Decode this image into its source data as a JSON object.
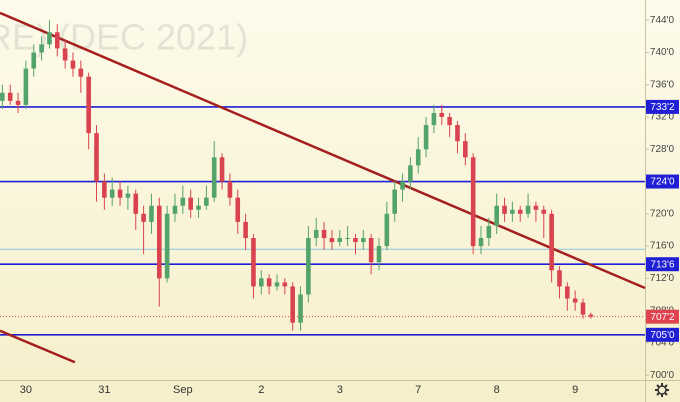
{
  "chart_data": {
    "type": "candlestick",
    "watermark": "RE) (DEC 2021)",
    "up_color": "#53a36a",
    "down_color": "#d9434f",
    "categories": [
      null,
      null,
      null,
      "30",
      null,
      null,
      null,
      null,
      null,
      null,
      null,
      null,
      null,
      "31",
      null,
      null,
      null,
      null,
      null,
      null,
      null,
      null,
      null,
      "Sep",
      null,
      null,
      null,
      null,
      null,
      null,
      null,
      null,
      null,
      "2",
      null,
      null,
      null,
      null,
      null,
      null,
      null,
      null,
      null,
      "3",
      null,
      null,
      null,
      null,
      null,
      null,
      null,
      null,
      null,
      "7",
      null,
      null,
      null,
      null,
      null,
      null,
      null,
      null,
      null,
      "8",
      null,
      null,
      null,
      null,
      null,
      null,
      null,
      null,
      null,
      "9",
      null,
      null
    ],
    "candles": [
      [
        734,
        736,
        733,
        735
      ],
      [
        735,
        736,
        733.5,
        734
      ],
      [
        734,
        735,
        732.5,
        733.5
      ],
      [
        733.5,
        739,
        733,
        738
      ],
      [
        738,
        741,
        737,
        740
      ],
      [
        740,
        742,
        739,
        741
      ],
      [
        741,
        744,
        740.5,
        742.5
      ],
      [
        742.5,
        743.5,
        739.5,
        740.5
      ],
      [
        740.5,
        741.5,
        738,
        739
      ],
      [
        739,
        740,
        737,
        738
      ],
      [
        738,
        739,
        735,
        737
      ],
      [
        737,
        737.5,
        728,
        730
      ],
      [
        730,
        731,
        721.5,
        724
      ],
      [
        724,
        725,
        720.5,
        722
      ],
      [
        722,
        724.5,
        721,
        723
      ],
      [
        723,
        724,
        721,
        722
      ],
      [
        722,
        723.5,
        720.5,
        722.5
      ],
      [
        722.5,
        723,
        718,
        720
      ],
      [
        720,
        721,
        715,
        719
      ],
      [
        719,
        722.5,
        717.5,
        721
      ],
      [
        721,
        722,
        708.5,
        712
      ],
      [
        712,
        721,
        711.5,
        720
      ],
      [
        720,
        722.5,
        719,
        721
      ],
      [
        721,
        723.5,
        720,
        722
      ],
      [
        722,
        723,
        719.5,
        720.5
      ],
      [
        720.5,
        722,
        719.5,
        721
      ],
      [
        721,
        723.5,
        720.5,
        722
      ],
      [
        722,
        729,
        721.5,
        727
      ],
      [
        727,
        727.5,
        723,
        724
      ],
      [
        724,
        725,
        721,
        722
      ],
      [
        722,
        723,
        717.5,
        719
      ],
      [
        719,
        720,
        715.5,
        717
      ],
      [
        717,
        717.5,
        709.5,
        711
      ],
      [
        711,
        713,
        710,
        712
      ],
      [
        712,
        712.5,
        710,
        711
      ],
      [
        711,
        712.5,
        710.5,
        711.5
      ],
      [
        711.5,
        712,
        710,
        711
      ],
      [
        711,
        711.5,
        705.5,
        706.5
      ],
      [
        706.5,
        711,
        705.5,
        710
      ],
      [
        710,
        718.5,
        709,
        717
      ],
      [
        717,
        719.5,
        716,
        718
      ],
      [
        718,
        719,
        715.5,
        717
      ],
      [
        717,
        718,
        715.5,
        716.5
      ],
      [
        716.5,
        718,
        716,
        717
      ],
      [
        717,
        718.5,
        716,
        717
      ],
      [
        717,
        717.5,
        715,
        716.5
      ],
      [
        716.5,
        718,
        715.5,
        717
      ],
      [
        717,
        717.5,
        712.5,
        714
      ],
      [
        714,
        717,
        713,
        716
      ],
      [
        716,
        721.5,
        715.5,
        720
      ],
      [
        720,
        724,
        719,
        723
      ],
      [
        723,
        725,
        721.5,
        724
      ],
      [
        724,
        727,
        723,
        726
      ],
      [
        726,
        729.5,
        725,
        728
      ],
      [
        728,
        732,
        727,
        731
      ],
      [
        731,
        733.5,
        730,
        732.5
      ],
      [
        732.5,
        733.5,
        731,
        732
      ],
      [
        732,
        732.5,
        729.5,
        731
      ],
      [
        731,
        731.5,
        727.5,
        729
      ],
      [
        729,
        730,
        726,
        727
      ],
      [
        727,
        727.5,
        715,
        716
      ],
      [
        716,
        718.5,
        715,
        717
      ],
      [
        717,
        719.5,
        716,
        718.5
      ],
      [
        718.5,
        722.5,
        717.5,
        721
      ],
      [
        721,
        722,
        719,
        720
      ],
      [
        720,
        721.5,
        719,
        720.5
      ],
      [
        720.5,
        721,
        719,
        720
      ],
      [
        720,
        722.5,
        719.5,
        721
      ],
      [
        721,
        721.5,
        719,
        720.5
      ],
      [
        720.5,
        721,
        717,
        720
      ],
      [
        720,
        720.5,
        711.5,
        713
      ],
      [
        713,
        713.5,
        709.5,
        711
      ],
      [
        711,
        711.5,
        708,
        709.5
      ],
      [
        709.5,
        710.5,
        708,
        709
      ],
      [
        709,
        709.5,
        707,
        707.5
      ],
      [
        707.5,
        707.75,
        707,
        707.25
      ]
    ],
    "xlim": [
      -0.3,
      81.9
    ],
    "ylim": [
      699.4,
      746.5
    ],
    "yticks": [
      {
        "value": 744,
        "label": "744'0"
      },
      {
        "value": 740,
        "label": "740'0"
      },
      {
        "value": 736,
        "label": "736'0"
      },
      {
        "value": 732,
        "label": "732'0"
      },
      {
        "value": 728,
        "label": "728'0"
      },
      {
        "value": 724,
        "label": "724'0"
      },
      {
        "value": 720,
        "label": "720'0"
      },
      {
        "value": 716,
        "label": "716'0"
      },
      {
        "value": 712,
        "label": "712'0"
      },
      {
        "value": 708,
        "label": "708'0"
      },
      {
        "value": 704,
        "label": "704'0"
      },
      {
        "value": 700,
        "label": "700'0"
      }
    ],
    "levels": [
      {
        "value": 733.25,
        "label": "733'2",
        "color": "#1f1fd6"
      },
      {
        "value": 724,
        "label": "724'0",
        "color": "#1f1fd6"
      },
      {
        "value": 713.75,
        "label": "713'6",
        "color": "#1f1fd6"
      },
      {
        "value": 705,
        "label": "705'0",
        "color": "#1f1fd6"
      },
      {
        "value": 715.6,
        "color": "#8ec5e0"
      }
    ],
    "last_price": {
      "value": 707.25,
      "label": "707'2",
      "color": "#e0434f"
    },
    "trend_lines": [
      {
        "from": [
          -0.3,
          744.9
        ],
        "to": [
          81.9,
          710.8
        ],
        "color": "#a3201f"
      },
      {
        "from": [
          -0.3,
          705.5
        ],
        "to": [
          9.25,
          701.6
        ],
        "color": "#a3201f"
      }
    ]
  }
}
